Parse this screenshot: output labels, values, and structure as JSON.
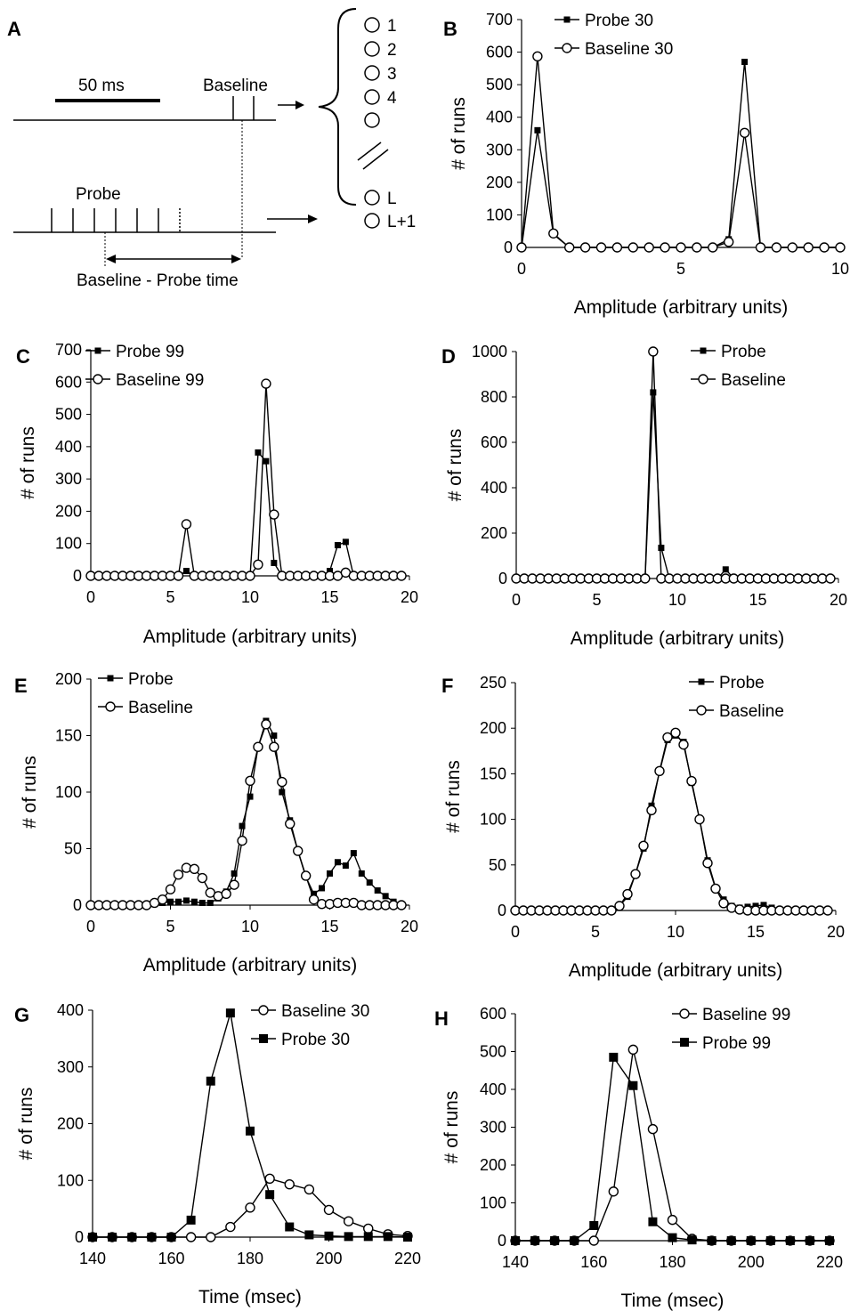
{
  "schematic": {
    "label": "A",
    "scale_bar_label": "50 ms",
    "baseline_label": "Baseline",
    "probe_label": "Probe",
    "interval_label": "Baseline - Probe time",
    "run_labels": [
      "1",
      "2",
      "3",
      "4",
      "",
      "L",
      "L+1"
    ]
  },
  "chart_data": [
    {
      "id": "B",
      "label": "B",
      "type": "line",
      "xlabel": "Amplitude (arbitrary units)",
      "ylabel": "# of runs",
      "xlim": [
        0,
        10
      ],
      "ylim": [
        0,
        700
      ],
      "xticks": [
        0,
        5,
        10
      ],
      "yticks": [
        0,
        100,
        200,
        300,
        400,
        500,
        600,
        700
      ],
      "legend_position": "top-center",
      "series": [
        {
          "name": "Probe 30",
          "marker": "square-small",
          "x": [
            0,
            0.5,
            1,
            1.5,
            2,
            2.5,
            3,
            3.5,
            4,
            4.5,
            5,
            5.5,
            6,
            6.5,
            7,
            7.5,
            8,
            8.5,
            9,
            9.5,
            10
          ],
          "y": [
            0,
            360,
            40,
            0,
            0,
            0,
            0,
            0,
            0,
            0,
            0,
            0,
            0,
            25,
            570,
            0,
            0,
            0,
            0,
            0,
            0
          ]
        },
        {
          "name": "Baseline 30",
          "marker": "circle-open",
          "x": [
            0,
            0.5,
            1,
            1.5,
            2,
            2.5,
            3,
            3.5,
            4,
            4.5,
            5,
            5.5,
            6,
            6.5,
            7,
            7.5,
            8,
            8.5,
            9,
            9.5,
            10
          ],
          "y": [
            0,
            587,
            43,
            0,
            0,
            0,
            0,
            0,
            0,
            0,
            0,
            0,
            0,
            17,
            352,
            0,
            0,
            0,
            0,
            0,
            0
          ]
        }
      ]
    },
    {
      "id": "C",
      "label": "C",
      "type": "line",
      "xlabel": "Amplitude (arbitrary units)",
      "ylabel": "# of runs",
      "xlim": [
        0,
        20
      ],
      "ylim": [
        0,
        700
      ],
      "xticks": [
        0,
        5,
        10,
        15,
        20
      ],
      "yticks": [
        0,
        100,
        200,
        300,
        400,
        500,
        600,
        700
      ],
      "legend_position": "top-left",
      "series": [
        {
          "name": "Probe 99",
          "marker": "square-small",
          "x": [
            0,
            0.5,
            1,
            1.5,
            2,
            2.5,
            3,
            3.5,
            4,
            4.5,
            5,
            5.5,
            6,
            6.5,
            7,
            7.5,
            8,
            8.5,
            9,
            9.5,
            10,
            10.5,
            11,
            11.5,
            12,
            12.5,
            13,
            13.5,
            14,
            14.5,
            15,
            15.5,
            16,
            16.5,
            17,
            17.5,
            18,
            18.5,
            19,
            19.5
          ],
          "y": [
            0,
            0,
            0,
            0,
            0,
            0,
            0,
            0,
            0,
            0,
            0,
            0,
            15,
            0,
            0,
            0,
            0,
            0,
            0,
            0,
            0,
            382,
            355,
            40,
            0,
            0,
            0,
            0,
            0,
            0,
            15,
            95,
            105,
            0,
            0,
            0,
            0,
            0,
            0,
            0
          ]
        },
        {
          "name": "Baseline 99",
          "marker": "circle-open",
          "x": [
            0,
            0.5,
            1,
            1.5,
            2,
            2.5,
            3,
            3.5,
            4,
            4.5,
            5,
            5.5,
            6,
            6.5,
            7,
            7.5,
            8,
            8.5,
            9,
            9.5,
            10,
            10.5,
            11,
            11.5,
            12,
            12.5,
            13,
            13.5,
            14,
            14.5,
            15,
            15.5,
            16,
            16.5,
            17,
            17.5,
            18,
            18.5,
            19,
            19.5
          ],
          "y": [
            0,
            0,
            0,
            0,
            0,
            0,
            0,
            0,
            0,
            0,
            0,
            0,
            160,
            0,
            0,
            0,
            0,
            0,
            0,
            0,
            0,
            35,
            595,
            190,
            0,
            0,
            0,
            0,
            0,
            0,
            0,
            0,
            10,
            0,
            0,
            0,
            0,
            0,
            0,
            0
          ]
        }
      ]
    },
    {
      "id": "D",
      "label": "D",
      "type": "line",
      "xlabel": "Amplitude (arbitrary units)",
      "ylabel": "# of runs",
      "xlim": [
        0,
        20
      ],
      "ylim": [
        0,
        1000
      ],
      "xticks": [
        0,
        5,
        10,
        15,
        20
      ],
      "yticks": [
        0,
        200,
        400,
        600,
        800,
        1000
      ],
      "legend_position": "top-right",
      "series": [
        {
          "name": "Probe",
          "marker": "square-small",
          "x": [
            0,
            0.5,
            1,
            1.5,
            2,
            2.5,
            3,
            3.5,
            4,
            4.5,
            5,
            5.5,
            6,
            6.5,
            7,
            7.5,
            8,
            8.5,
            9,
            9.5,
            10,
            10.5,
            11,
            11.5,
            12,
            12.5,
            13,
            13.5,
            14,
            14.5,
            15,
            15.5,
            16,
            16.5,
            17,
            17.5,
            18,
            18.5,
            19,
            19.5
          ],
          "y": [
            0,
            0,
            0,
            0,
            0,
            0,
            0,
            0,
            0,
            0,
            0,
            0,
            0,
            0,
            0,
            0,
            0,
            820,
            135,
            0,
            0,
            0,
            0,
            0,
            0,
            0,
            40,
            0,
            0,
            0,
            0,
            0,
            0,
            0,
            0,
            0,
            0,
            0,
            0,
            0
          ]
        },
        {
          "name": "Baseline",
          "marker": "circle-open",
          "x": [
            0,
            0.5,
            1,
            1.5,
            2,
            2.5,
            3,
            3.5,
            4,
            4.5,
            5,
            5.5,
            6,
            6.5,
            7,
            7.5,
            8,
            8.5,
            9,
            9.5,
            10,
            10.5,
            11,
            11.5,
            12,
            12.5,
            13,
            13.5,
            14,
            14.5,
            15,
            15.5,
            16,
            16.5,
            17,
            17.5,
            18,
            18.5,
            19,
            19.5
          ],
          "y": [
            0,
            0,
            0,
            0,
            0,
            0,
            0,
            0,
            0,
            0,
            0,
            0,
            0,
            0,
            0,
            0,
            0,
            1000,
            0,
            0,
            0,
            0,
            0,
            0,
            0,
            0,
            0,
            0,
            0,
            0,
            0,
            0,
            0,
            0,
            0,
            0,
            0,
            0,
            0,
            0
          ]
        }
      ]
    },
    {
      "id": "E",
      "label": "E",
      "type": "line",
      "xlabel": "Amplitude (arbitrary units)",
      "ylabel": "# of runs",
      "xlim": [
        0,
        20
      ],
      "ylim": [
        0,
        200
      ],
      "xticks": [
        0,
        5,
        10,
        15,
        20
      ],
      "yticks": [
        0,
        50,
        100,
        150,
        200
      ],
      "legend_position": "top-left",
      "series": [
        {
          "name": "Probe",
          "marker": "square-small",
          "x": [
            0,
            0.5,
            1,
            1.5,
            2,
            2.5,
            3,
            3.5,
            4,
            4.5,
            5,
            5.5,
            6,
            6.5,
            7,
            7.5,
            8,
            8.5,
            9,
            9.5,
            10,
            10.5,
            11,
            11.5,
            12,
            12.5,
            13,
            13.5,
            14,
            14.5,
            15,
            15.5,
            16,
            16.5,
            17,
            17.5,
            18,
            18.5,
            19,
            19.5
          ],
          "y": [
            0,
            0,
            0,
            0,
            0,
            0,
            0,
            0,
            1,
            2,
            3,
            3,
            4,
            3,
            2,
            2,
            6,
            12,
            28,
            70,
            96,
            140,
            163,
            150,
            100,
            75,
            48,
            25,
            10,
            15,
            28,
            38,
            35,
            46,
            28,
            20,
            13,
            8,
            3,
            0
          ]
        },
        {
          "name": "Baseline",
          "marker": "circle-open",
          "x": [
            0,
            0.5,
            1,
            1.5,
            2,
            2.5,
            3,
            3.5,
            4,
            4.5,
            5,
            5.5,
            6,
            6.5,
            7,
            7.5,
            8,
            8.5,
            9,
            9.5,
            10,
            10.5,
            11,
            11.5,
            12,
            12.5,
            13,
            13.5,
            14,
            14.5,
            15,
            15.5,
            16,
            16.5,
            17,
            17.5,
            18,
            18.5,
            19,
            19.5
          ],
          "y": [
            0,
            0,
            0,
            0,
            0,
            0,
            0,
            0,
            2,
            5,
            14,
            27,
            33,
            32,
            24,
            11,
            8,
            10,
            18,
            57,
            110,
            140,
            160,
            140,
            109,
            72,
            48,
            26,
            5,
            1,
            1,
            2,
            2,
            2,
            0,
            0,
            0,
            0,
            0,
            0
          ]
        }
      ]
    },
    {
      "id": "F",
      "label": "F",
      "type": "line",
      "xlabel": "Amplitude (arbitrary units)",
      "ylabel": "# of runs",
      "xlim": [
        0,
        20
      ],
      "ylim": [
        0,
        250
      ],
      "xticks": [
        0,
        5,
        10,
        15,
        20
      ],
      "yticks": [
        0,
        50,
        100,
        150,
        200,
        250
      ],
      "legend_position": "top-right",
      "series": [
        {
          "name": "Probe",
          "marker": "square-small",
          "x": [
            0,
            0.5,
            1,
            1.5,
            2,
            2.5,
            3,
            3.5,
            4,
            4.5,
            5,
            5.5,
            6,
            6.5,
            7,
            7.5,
            8,
            8.5,
            9,
            9.5,
            10,
            10.5,
            11,
            11.5,
            12,
            12.5,
            13,
            13.5,
            14,
            14.5,
            15,
            15.5,
            16,
            16.5,
            17,
            17.5,
            18,
            18.5,
            19,
            19.5
          ],
          "y": [
            0,
            0,
            0,
            0,
            0,
            0,
            0,
            0,
            0,
            0,
            0,
            0,
            0,
            5,
            15,
            40,
            68,
            115,
            152,
            187,
            192,
            185,
            140,
            100,
            55,
            25,
            12,
            5,
            3,
            4,
            5,
            6,
            3,
            0,
            0,
            0,
            0,
            0,
            0,
            0
          ]
        },
        {
          "name": "Baseline",
          "marker": "circle-open",
          "x": [
            0,
            0.5,
            1,
            1.5,
            2,
            2.5,
            3,
            3.5,
            4,
            4.5,
            5,
            5.5,
            6,
            6.5,
            7,
            7.5,
            8,
            8.5,
            9,
            9.5,
            10,
            10.5,
            11,
            11.5,
            12,
            12.5,
            13,
            13.5,
            14,
            14.5,
            15,
            15.5,
            16,
            16.5,
            17,
            17.5,
            18,
            18.5,
            19,
            19.5
          ],
          "y": [
            0,
            0,
            0,
            0,
            0,
            0,
            0,
            0,
            0,
            0,
            0,
            0,
            0,
            5,
            18,
            40,
            71,
            110,
            153,
            190,
            195,
            182,
            142,
            100,
            52,
            24,
            8,
            3,
            1,
            0,
            0,
            0,
            0,
            0,
            0,
            0,
            0,
            0,
            0,
            0
          ]
        }
      ]
    },
    {
      "id": "G",
      "label": "G",
      "type": "line",
      "xlabel": "Time (msec)",
      "ylabel": "# of runs",
      "xlim": [
        140,
        220
      ],
      "ylim": [
        0,
        400
      ],
      "xticks": [
        140,
        160,
        180,
        200,
        220
      ],
      "yticks": [
        0,
        100,
        200,
        300,
        400
      ],
      "legend_position": "top-right",
      "series": [
        {
          "name": "Baseline 30",
          "marker": "circle-open",
          "x": [
            140,
            145,
            150,
            155,
            160,
            165,
            170,
            175,
            180,
            185,
            190,
            195,
            200,
            205,
            210,
            215,
            220
          ],
          "y": [
            0,
            0,
            0,
            0,
            0,
            0,
            0,
            18,
            52,
            103,
            93,
            84,
            48,
            28,
            15,
            5,
            2
          ]
        },
        {
          "name": "Probe 30",
          "marker": "square-large",
          "x": [
            140,
            145,
            150,
            155,
            160,
            165,
            170,
            175,
            180,
            185,
            190,
            195,
            200,
            205,
            210,
            215,
            220
          ],
          "y": [
            0,
            0,
            0,
            0,
            0,
            30,
            275,
            395,
            187,
            75,
            18,
            4,
            2,
            1,
            1,
            1,
            0
          ]
        }
      ]
    },
    {
      "id": "H",
      "label": "H",
      "type": "line",
      "xlabel": "Time (msec)",
      "ylabel": "# of runs",
      "xlim": [
        140,
        220
      ],
      "ylim": [
        0,
        600
      ],
      "xticks": [
        140,
        160,
        180,
        200,
        220
      ],
      "yticks": [
        0,
        100,
        200,
        300,
        400,
        500,
        600
      ],
      "legend_position": "top-right",
      "series": [
        {
          "name": "Baseline 99",
          "marker": "circle-open",
          "x": [
            140,
            145,
            150,
            155,
            160,
            165,
            170,
            175,
            180,
            185,
            190,
            195,
            200,
            205,
            210,
            215,
            220
          ],
          "y": [
            0,
            0,
            0,
            0,
            0,
            130,
            505,
            295,
            55,
            5,
            0,
            0,
            0,
            0,
            0,
            0,
            0
          ]
        },
        {
          "name": "Probe 99",
          "marker": "square-large",
          "x": [
            140,
            145,
            150,
            155,
            160,
            165,
            170,
            175,
            180,
            185,
            190,
            195,
            200,
            205,
            210,
            215,
            220
          ],
          "y": [
            0,
            0,
            0,
            0,
            40,
            485,
            410,
            50,
            8,
            2,
            0,
            0,
            0,
            0,
            0,
            0,
            0
          ]
        }
      ]
    }
  ]
}
